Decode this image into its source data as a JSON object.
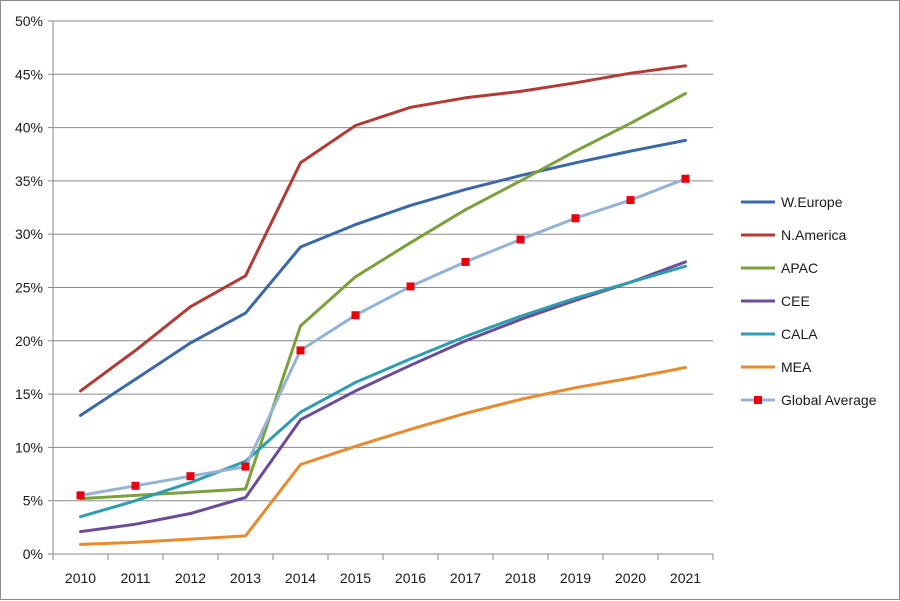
{
  "chart_data": {
    "type": "line",
    "title": "",
    "xlabel": "",
    "ylabel": "",
    "categories": [
      "2010",
      "2011",
      "2012",
      "2013",
      "2014",
      "2015",
      "2016",
      "2017",
      "2018",
      "2019",
      "2020",
      "2021"
    ],
    "ylim": [
      0,
      0.5
    ],
    "yticks": [
      "0%",
      "5%",
      "10%",
      "15%",
      "20%",
      "25%",
      "30%",
      "35%",
      "40%",
      "45%",
      "50%"
    ],
    "grid": "horizontal",
    "legend_position": "right",
    "series": [
      {
        "name": "W.Europe",
        "color": "#3b68a8",
        "marker": "none",
        "values": [
          0.13,
          0.164,
          0.198,
          0.226,
          0.288,
          0.309,
          0.327,
          0.342,
          0.355,
          0.367,
          0.378,
          0.388
        ]
      },
      {
        "name": "N.America",
        "color": "#b33a35",
        "marker": "none",
        "values": [
          0.153,
          0.191,
          0.232,
          0.261,
          0.367,
          0.402,
          0.419,
          0.428,
          0.434,
          0.442,
          0.451,
          0.458
        ]
      },
      {
        "name": "APAC",
        "color": "#7ba13d",
        "marker": "none",
        "values": [
          0.052,
          0.055,
          0.058,
          0.061,
          0.214,
          0.26,
          0.292,
          0.323,
          0.35,
          0.378,
          0.404,
          0.432
        ]
      },
      {
        "name": "CEE",
        "color": "#6b4c9a",
        "marker": "none",
        "values": [
          0.021,
          0.028,
          0.038,
          0.053,
          0.126,
          0.153,
          0.177,
          0.2,
          0.22,
          0.238,
          0.255,
          0.274
        ]
      },
      {
        "name": "CALA",
        "color": "#2f9db0",
        "marker": "none",
        "values": [
          0.035,
          0.05,
          0.067,
          0.087,
          0.133,
          0.161,
          0.183,
          0.204,
          0.223,
          0.24,
          0.255,
          0.27
        ]
      },
      {
        "name": "MEA",
        "color": "#e88a2e",
        "marker": "none",
        "values": [
          0.009,
          0.011,
          0.014,
          0.017,
          0.084,
          0.101,
          0.117,
          0.132,
          0.145,
          0.156,
          0.165,
          0.175
        ]
      },
      {
        "name": "Global Average",
        "color": "#95b3d7",
        "marker": "square",
        "marker_color": "#e8000c",
        "values": [
          0.055,
          0.064,
          0.073,
          0.082,
          0.191,
          0.224,
          0.251,
          0.274,
          0.295,
          0.315,
          0.332,
          0.352
        ]
      }
    ]
  }
}
